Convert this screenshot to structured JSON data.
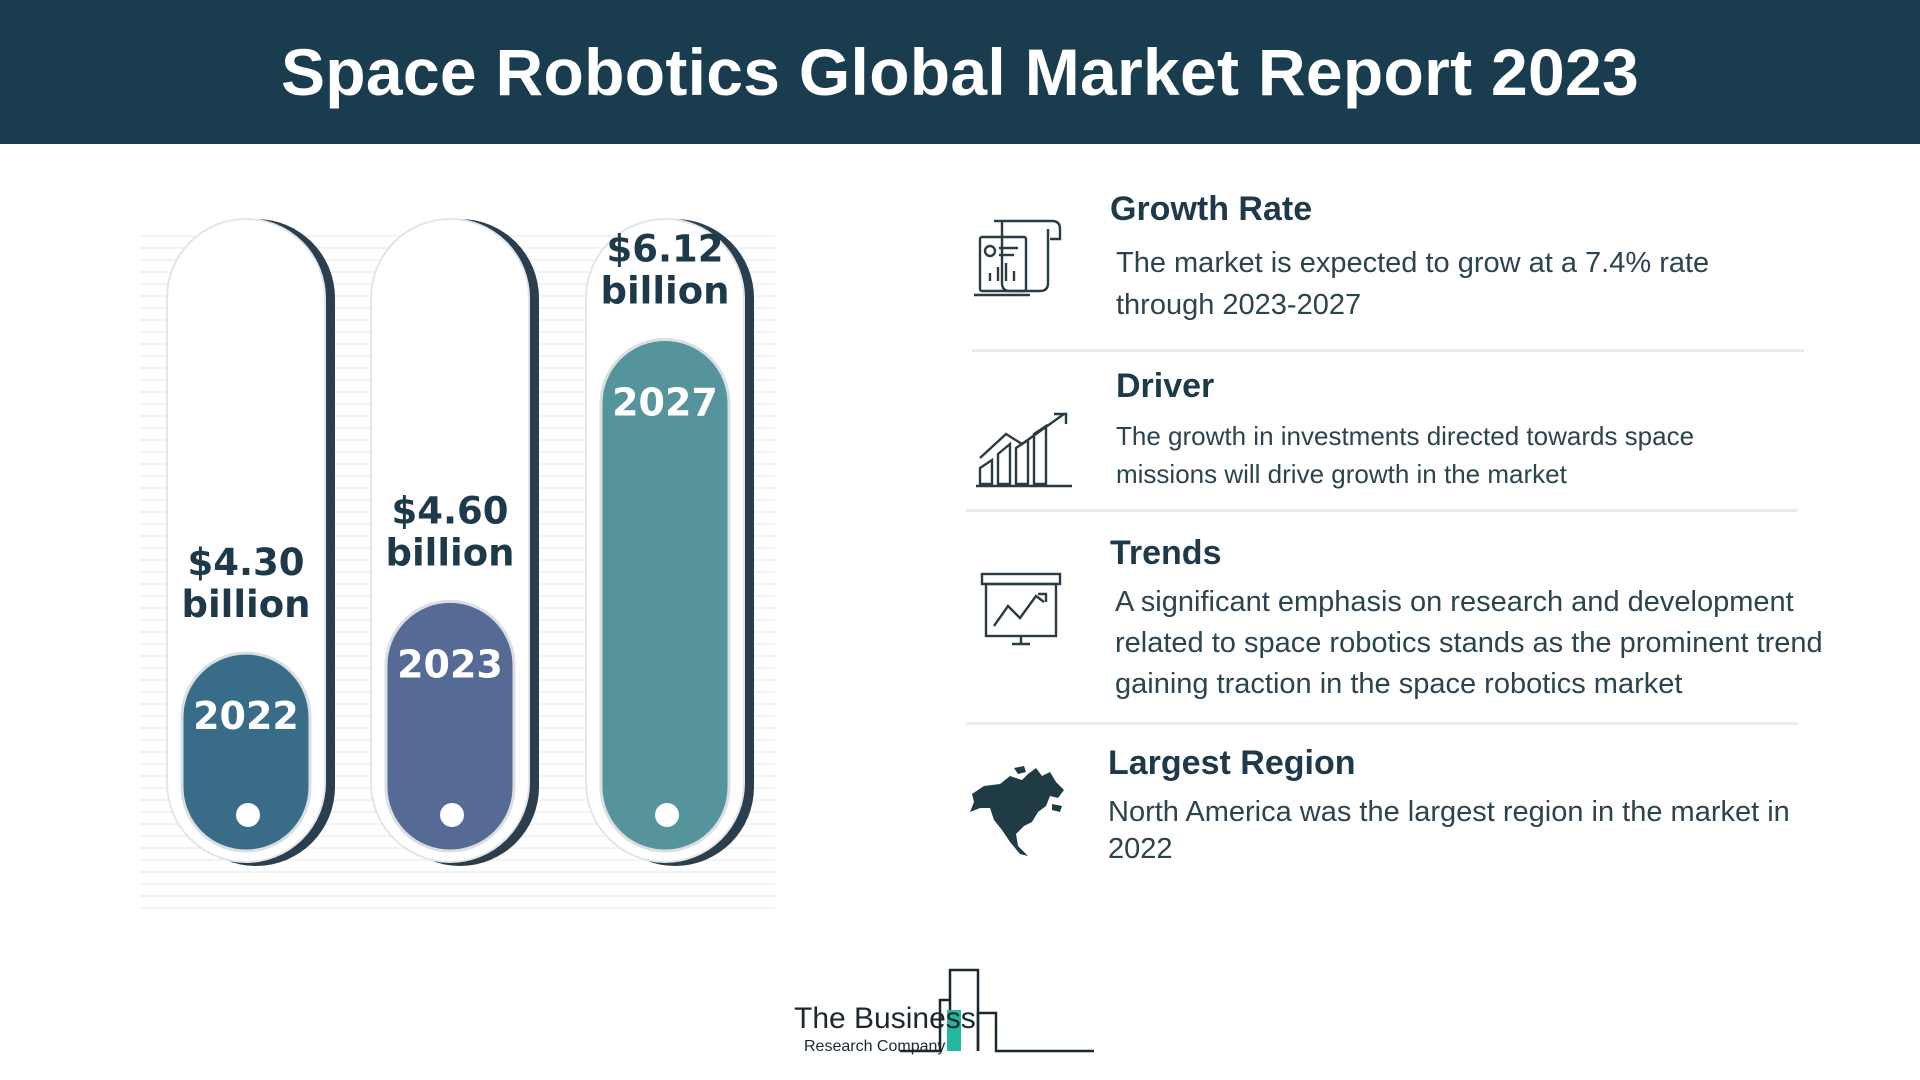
{
  "header": {
    "title": "Space Robotics Global Market Report 2023"
  },
  "chart_data": {
    "type": "bar",
    "categories": [
      "2022",
      "2023",
      "2027"
    ],
    "values": [
      4.3,
      4.6,
      6.12
    ],
    "value_labels": [
      [
        "$4.30",
        "billion"
      ],
      [
        "$4.60",
        "billion"
      ],
      [
        "$6.12",
        "billion"
      ]
    ],
    "colors": [
      "#386c88",
      "#556a95",
      "#55949a"
    ],
    "ylim": [
      3.5,
      6.5
    ]
  },
  "sections": [
    {
      "icon": "report-document-icon",
      "title": "Growth Rate",
      "lines": [
        "The market is expected to grow at a 7.4% rate",
        "through 2023-2027"
      ]
    },
    {
      "icon": "growth-chart-icon",
      "title": "Driver",
      "lines": [
        "The growth in investments directed towards space",
        "missions will drive growth in the market"
      ]
    },
    {
      "icon": "presentation-board-icon",
      "title": "Trends",
      "lines": [
        "A significant emphasis on research and development",
        "related to space robotics stands as the prominent trend",
        "gaining traction in the space robotics market"
      ]
    },
    {
      "icon": "north-america-map-icon",
      "title": "Largest Region",
      "lines": [
        "North America was the largest region in the market in",
        "2022"
      ]
    }
  ],
  "logo": {
    "line1": "The Business",
    "line2": "Research Company"
  }
}
